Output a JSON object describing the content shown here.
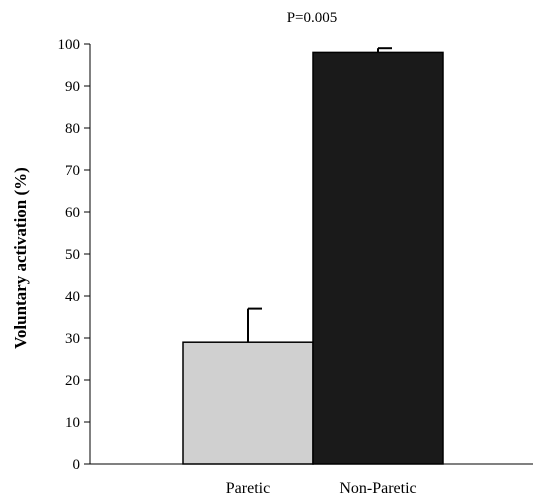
{
  "chart_data": {
    "type": "bar",
    "title": "",
    "annotation": "P=0.005",
    "xlabel": "",
    "ylabel": "Voluntary activation (%)",
    "ylim": [
      0,
      100
    ],
    "yticks": [
      0,
      10,
      20,
      30,
      40,
      50,
      60,
      70,
      80,
      90,
      100
    ],
    "categories": [
      "Paretic",
      "Non-Paretic"
    ],
    "values": [
      29,
      98
    ],
    "error_upper": [
      8,
      1
    ],
    "bar_colors": [
      "#d0d0d0",
      "#1a1a1a"
    ],
    "grid": false
  }
}
